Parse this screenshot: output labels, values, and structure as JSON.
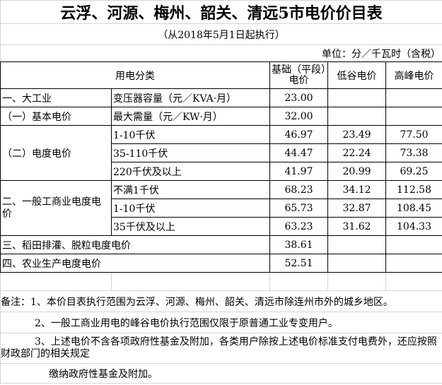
{
  "title": "云浮、河源、梅州、韶关、清远5市电价价目表",
  "subtitle": "（从2018年5月1日起执行）",
  "unit": "单位：分／千瓦时（含税）",
  "headers": {
    "category": "用电分类",
    "base": "基础（平段）电价",
    "valley": "低谷电价",
    "peak": "高峰电价"
  },
  "rows": {
    "large_industry": {
      "label": "一、大工业",
      "item": "变压器容量（元／KVA·月）",
      "base": "23.00"
    },
    "basic": {
      "label": "（一）基本电价",
      "item": "最大需量（元／KW·月）",
      "base": "32.00"
    },
    "energy": {
      "label": "（二）电度电价",
      "items": [
        {
          "item": "1-10千伏",
          "base": "46.97",
          "valley": "23.49",
          "peak": "77.50"
        },
        {
          "item": "35-110千伏",
          "base": "44.47",
          "valley": "22.24",
          "peak": "73.38"
        },
        {
          "item": "220千伏及以上",
          "base": "41.97",
          "valley": "20.99",
          "peak": "69.25"
        }
      ]
    },
    "general": {
      "label": "二、一般工商业电度电价",
      "items": [
        {
          "item": "不满1千伏",
          "base": "68.23",
          "valley": "34.12",
          "peak": "112.58"
        },
        {
          "item": "1-10千伏",
          "base": "65.73",
          "valley": "32.87",
          "peak": "108.45"
        },
        {
          "item": "35千伏及以上",
          "base": "63.23",
          "valley": "31.62",
          "peak": "104.33"
        }
      ]
    },
    "paddy": {
      "label": "三、稻田排灌、脱粒电度电价",
      "base": "38.61"
    },
    "agri": {
      "label": "四、农业生产电度电价",
      "base": "52.51"
    }
  },
  "notes": [
    "备注：1、本价目表执行范围为云浮、河源、梅州、韶关、清远市除连州市外的城乡地区。",
    "2、一般工商业用电的峰谷电价执行范围仅限于原普通工业专变用户。",
    "3、上述电价不含各项政府性基金及附加，各类用户除按上述电价标准支付电费外，还应按照财政部门的相关规定",
    "缴纳政府性基金及附加。"
  ]
}
